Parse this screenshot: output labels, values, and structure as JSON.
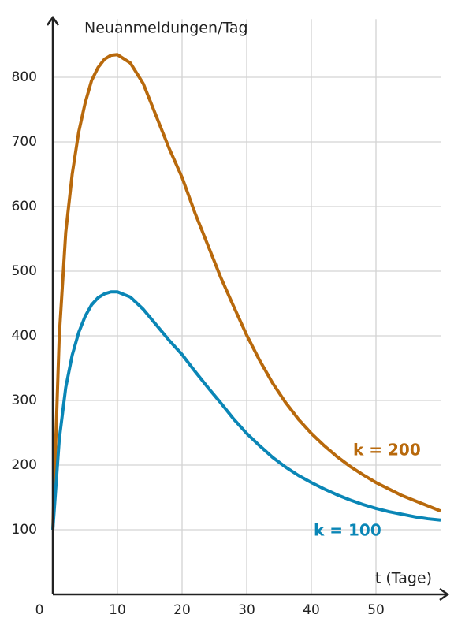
{
  "chart_data": {
    "type": "line",
    "y_label": "Neuanmeldungen/Tag",
    "x_label": "t (Tage)",
    "x": [
      0,
      1,
      2,
      3,
      4,
      5,
      6,
      7,
      8,
      9,
      10,
      12,
      14,
      16,
      18,
      20,
      22,
      24,
      26,
      28,
      30,
      32,
      34,
      36,
      38,
      40,
      42,
      44,
      46,
      48,
      50,
      52,
      54,
      56,
      58,
      60
    ],
    "series": [
      {
        "name": "k = 200",
        "color": "#b8690c",
        "values": [
          100,
          400,
          560,
          650,
          715,
          760,
          795,
          815,
          828,
          834,
          835,
          822,
          790,
          740,
          690,
          645,
          590,
          540,
          490,
          445,
          401,
          362,
          327,
          297,
          271,
          249,
          230,
          213,
          198,
          185,
          173,
          163,
          153,
          145,
          137,
          129
        ]
      },
      {
        "name": "k = 100",
        "color": "#0a86b6",
        "values": [
          100,
          240,
          320,
          370,
          405,
          430,
          448,
          459,
          465,
          468,
          468,
          460,
          441,
          417,
          393,
          371,
          345,
          320,
          296,
          271,
          249,
          230,
          212,
          197,
          184,
          173,
          163,
          154,
          146,
          139,
          133,
          128,
          124,
          120,
          117,
          115
        ]
      }
    ],
    "xlim": [
      0,
      60
    ],
    "ylim": [
      0,
      890
    ],
    "xticks": [
      0,
      10,
      20,
      30,
      40,
      50
    ],
    "yticks": [
      100,
      200,
      300,
      400,
      500,
      600,
      700,
      800
    ],
    "grid": true
  }
}
